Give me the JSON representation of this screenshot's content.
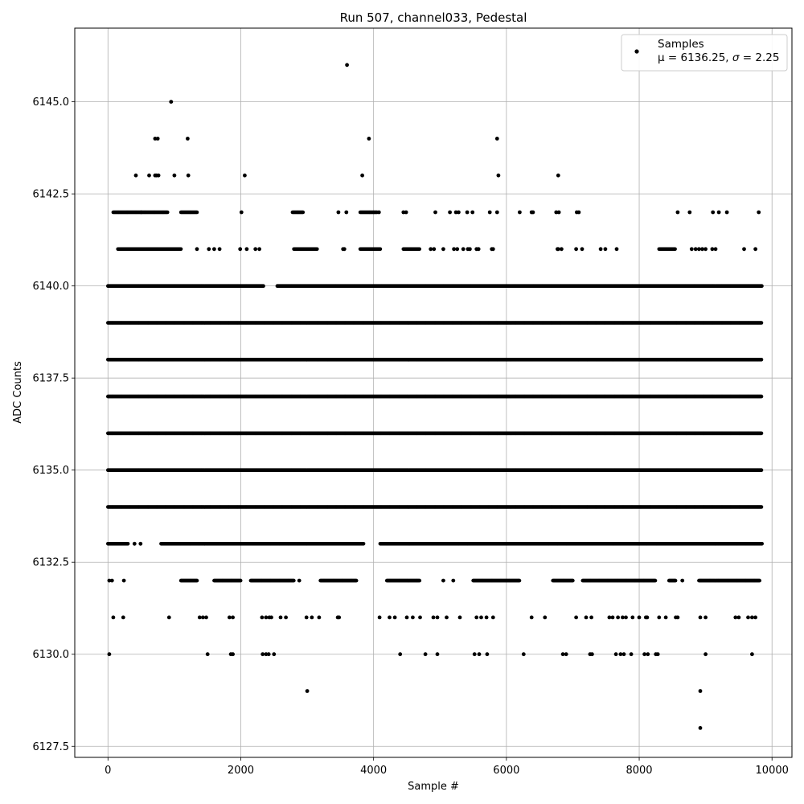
{
  "chart_data": {
    "type": "scatter",
    "title": "Run 507, channel033, Pedestal",
    "xlabel": "Sample #",
    "ylabel": "ADC Counts",
    "xlim": [
      -500,
      10300
    ],
    "ylim": [
      6127.2,
      6147.0
    ],
    "xticks": [
      0,
      2000,
      4000,
      6000,
      8000,
      10000
    ],
    "xtick_labels": [
      "0",
      "2000",
      "4000",
      "6000",
      "8000",
      "10000"
    ],
    "yticks": [
      6127.5,
      6130.0,
      6132.5,
      6135.0,
      6137.5,
      6140.0,
      6142.5,
      6145.0
    ],
    "ytick_labels": [
      "6127.5",
      "6130.0",
      "6132.5",
      "6135.0",
      "6137.5",
      "6140.0",
      "6142.5",
      "6145.0"
    ],
    "grid": true,
    "marker_color": "#000000",
    "legend": {
      "placement": "top-right",
      "entry": "Samples",
      "stats_prefix": "μ = 6136.25, ",
      "sigma": "σ",
      "stats_suffix": " = 2.25"
    },
    "series": [
      {
        "level_runs": [
          {
            "y": 6139,
            "runs": [
              [
                0,
                9850
              ]
            ]
          },
          {
            "y": 6138,
            "runs": [
              [
                0,
                9850
              ]
            ]
          },
          {
            "y": 6137,
            "runs": [
              [
                0,
                9850
              ]
            ]
          },
          {
            "y": 6136,
            "runs": [
              [
                0,
                9850
              ]
            ]
          },
          {
            "y": 6135,
            "runs": [
              [
                0,
                9850
              ]
            ]
          },
          {
            "y": 6134,
            "runs": [
              [
                0,
                9850
              ]
            ]
          },
          {
            "y": 6140,
            "runs": [
              [
                0,
                2340
              ],
              [
                2550,
                9850
              ]
            ]
          },
          {
            "y": 6133,
            "runs": [
              [
                0,
                300
              ],
              [
                800,
                3850
              ],
              [
                4100,
                9850
              ]
            ]
          },
          {
            "y": 6132,
            "runs": [
              [
                1100,
                1350
              ],
              [
                1600,
                2000
              ],
              [
                2150,
                2800
              ],
              [
                3200,
                3750
              ],
              [
                4200,
                4700
              ],
              [
                5500,
                6200
              ],
              [
                6700,
                7000
              ],
              [
                7150,
                8250
              ],
              [
                8450,
                8550
              ],
              [
                8900,
                9820
              ]
            ]
          },
          {
            "y": 6142,
            "runs": [
              [
                80,
                500
              ],
              [
                500,
                900
              ],
              [
                1100,
                1350
              ],
              [
                2780,
                2940
              ],
              [
                3800,
                4060
              ]
            ]
          },
          {
            "y": 6141,
            "runs": [
              [
                150,
                1100
              ],
              [
                2800,
                3150
              ],
              [
                3800,
                4100
              ],
              [
                4450,
                4700
              ],
              [
                8300,
                8550
              ]
            ]
          }
        ],
        "points": [
          [
            20,
            6130
          ],
          [
            1500,
            6130
          ],
          [
            1850,
            6130
          ],
          [
            1880,
            6130
          ],
          [
            2330,
            6130
          ],
          [
            2380,
            6130
          ],
          [
            2420,
            6130
          ],
          [
            2500,
            6130
          ],
          [
            4400,
            6130
          ],
          [
            4780,
            6130
          ],
          [
            4960,
            6130
          ],
          [
            5520,
            6130
          ],
          [
            5590,
            6130
          ],
          [
            5710,
            6130
          ],
          [
            6260,
            6130
          ],
          [
            6850,
            6130
          ],
          [
            6900,
            6130
          ],
          [
            7260,
            6130
          ],
          [
            7290,
            6130
          ],
          [
            7650,
            6130
          ],
          [
            7720,
            6130
          ],
          [
            7770,
            6130
          ],
          [
            7880,
            6130
          ],
          [
            8080,
            6130
          ],
          [
            8130,
            6130
          ],
          [
            8250,
            6130
          ],
          [
            8280,
            6130
          ],
          [
            9000,
            6130
          ],
          [
            9700,
            6130
          ],
          [
            3000,
            6129
          ],
          [
            8920,
            6129
          ],
          [
            8920,
            6128
          ],
          [
            80,
            6131
          ],
          [
            230,
            6131
          ],
          [
            920,
            6131
          ],
          [
            1380,
            6131
          ],
          [
            1430,
            6131
          ],
          [
            1480,
            6131
          ],
          [
            1830,
            6131
          ],
          [
            1880,
            6131
          ],
          [
            2320,
            6131
          ],
          [
            2380,
            6131
          ],
          [
            2430,
            6131
          ],
          [
            2460,
            6131
          ],
          [
            2600,
            6131
          ],
          [
            2680,
            6131
          ],
          [
            2990,
            6131
          ],
          [
            3070,
            6131
          ],
          [
            3180,
            6131
          ],
          [
            3460,
            6131
          ],
          [
            3480,
            6131
          ],
          [
            4090,
            6131
          ],
          [
            4240,
            6131
          ],
          [
            4320,
            6131
          ],
          [
            4500,
            6131
          ],
          [
            4590,
            6131
          ],
          [
            4700,
            6131
          ],
          [
            4900,
            6131
          ],
          [
            4960,
            6131
          ],
          [
            5100,
            6131
          ],
          [
            5300,
            6131
          ],
          [
            5550,
            6131
          ],
          [
            5620,
            6131
          ],
          [
            5700,
            6131
          ],
          [
            5800,
            6131
          ],
          [
            6380,
            6131
          ],
          [
            6580,
            6131
          ],
          [
            7050,
            6131
          ],
          [
            7200,
            6131
          ],
          [
            7280,
            6131
          ],
          [
            7550,
            6131
          ],
          [
            7600,
            6131
          ],
          [
            7680,
            6131
          ],
          [
            7750,
            6131
          ],
          [
            7800,
            6131
          ],
          [
            7900,
            6131
          ],
          [
            8000,
            6131
          ],
          [
            8100,
            6131
          ],
          [
            8120,
            6131
          ],
          [
            8300,
            6131
          ],
          [
            8400,
            6131
          ],
          [
            8550,
            6131
          ],
          [
            8580,
            6131
          ],
          [
            8920,
            6131
          ],
          [
            9000,
            6131
          ],
          [
            9450,
            6131
          ],
          [
            9500,
            6131
          ],
          [
            9640,
            6131
          ],
          [
            9700,
            6131
          ],
          [
            9750,
            6131
          ],
          [
            20,
            6132
          ],
          [
            60,
            6132
          ],
          [
            240,
            6132
          ],
          [
            2880,
            6132
          ],
          [
            5050,
            6132
          ],
          [
            5200,
            6132
          ],
          [
            8650,
            6132
          ],
          [
            400,
            6133
          ],
          [
            490,
            6133
          ],
          [
            1990,
            6141
          ],
          [
            2090,
            6141
          ],
          [
            2220,
            6141
          ],
          [
            2280,
            6141
          ],
          [
            1340,
            6141
          ],
          [
            1520,
            6141
          ],
          [
            1600,
            6141
          ],
          [
            1680,
            6141
          ],
          [
            3540,
            6141
          ],
          [
            3560,
            6141
          ],
          [
            4860,
            6141
          ],
          [
            4910,
            6141
          ],
          [
            5050,
            6141
          ],
          [
            5210,
            6141
          ],
          [
            5260,
            6141
          ],
          [
            5350,
            6141
          ],
          [
            5420,
            6141
          ],
          [
            5450,
            6141
          ],
          [
            5550,
            6141
          ],
          [
            5580,
            6141
          ],
          [
            5780,
            6141
          ],
          [
            5800,
            6141
          ],
          [
            6770,
            6141
          ],
          [
            6780,
            6141
          ],
          [
            6830,
            6141
          ],
          [
            7050,
            6141
          ],
          [
            7140,
            6141
          ],
          [
            7420,
            6141
          ],
          [
            7490,
            6141
          ],
          [
            7660,
            6141
          ],
          [
            8790,
            6141
          ],
          [
            8850,
            6141
          ],
          [
            8900,
            6141
          ],
          [
            8950,
            6141
          ],
          [
            9000,
            6141
          ],
          [
            9100,
            6141
          ],
          [
            9150,
            6141
          ],
          [
            9580,
            6141
          ],
          [
            9750,
            6141
          ],
          [
            2010,
            6142
          ],
          [
            3470,
            6142
          ],
          [
            3590,
            6142
          ],
          [
            4080,
            6142
          ],
          [
            4450,
            6142
          ],
          [
            4490,
            6142
          ],
          [
            4930,
            6142
          ],
          [
            5150,
            6142
          ],
          [
            5240,
            6142
          ],
          [
            5280,
            6142
          ],
          [
            5410,
            6142
          ],
          [
            5490,
            6142
          ],
          [
            5750,
            6142
          ],
          [
            5860,
            6142
          ],
          [
            6200,
            6142
          ],
          [
            6380,
            6142
          ],
          [
            6400,
            6142
          ],
          [
            6750,
            6142
          ],
          [
            6790,
            6142
          ],
          [
            7060,
            6142
          ],
          [
            7090,
            6142
          ],
          [
            8580,
            6142
          ],
          [
            8760,
            6142
          ],
          [
            9110,
            6142
          ],
          [
            9200,
            6142
          ],
          [
            9320,
            6142
          ],
          [
            9800,
            6142
          ],
          [
            420,
            6143
          ],
          [
            620,
            6143
          ],
          [
            710,
            6143
          ],
          [
            730,
            6143
          ],
          [
            760,
            6143
          ],
          [
            1000,
            6143
          ],
          [
            1210,
            6143
          ],
          [
            2060,
            6143
          ],
          [
            3830,
            6143
          ],
          [
            5880,
            6143
          ],
          [
            6780,
            6143
          ],
          [
            710,
            6144
          ],
          [
            750,
            6144
          ],
          [
            1200,
            6144
          ],
          [
            3930,
            6144
          ],
          [
            5860,
            6144
          ],
          [
            950,
            6145
          ],
          [
            3600,
            6146
          ]
        ]
      }
    ]
  }
}
